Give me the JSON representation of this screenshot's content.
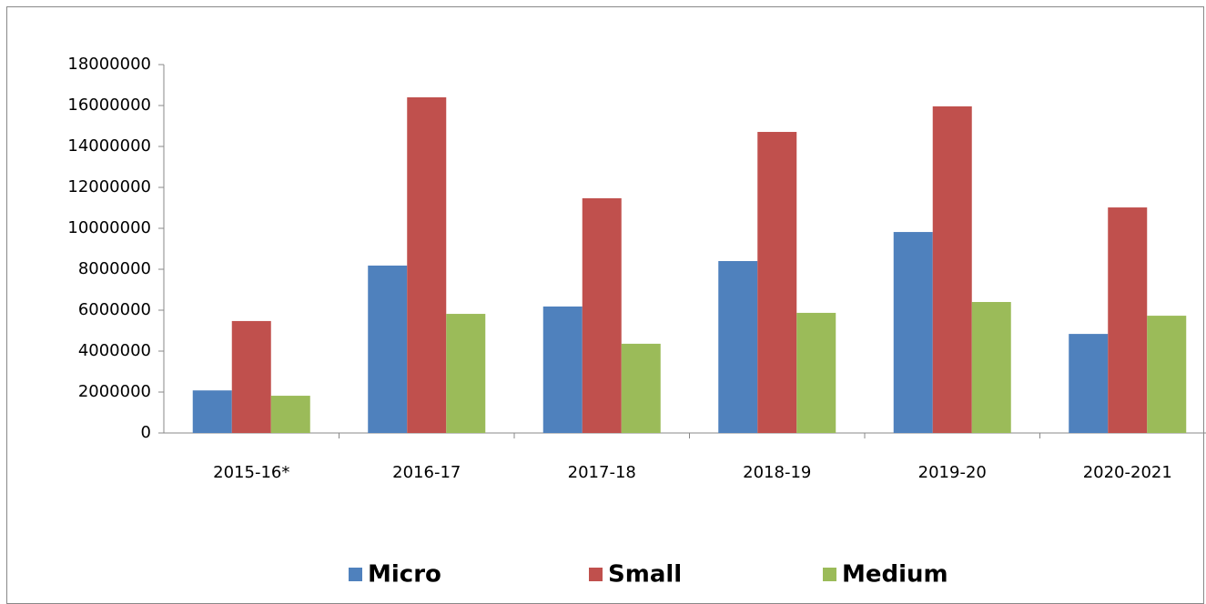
{
  "chart_data": {
    "type": "bar",
    "categories": [
      "2015-16*",
      "2016-17",
      "2017-18",
      "2018-19",
      "2019-20",
      "2020-2021"
    ],
    "series": [
      {
        "name": "Micro",
        "color": "#4f81bd",
        "values": [
          2080000,
          8180000,
          6180000,
          8400000,
          9820000,
          4840000
        ]
      },
      {
        "name": "Small",
        "color": "#c0504d",
        "values": [
          5470000,
          16400000,
          11470000,
          14710000,
          15960000,
          11020000
        ]
      },
      {
        "name": "Medium",
        "color": "#9bbb59",
        "values": [
          1820000,
          5820000,
          4360000,
          5870000,
          6400000,
          5730000
        ]
      }
    ],
    "ylim": [
      0,
      18000000
    ],
    "yticks": [
      0,
      2000000,
      4000000,
      6000000,
      8000000,
      10000000,
      12000000,
      14000000,
      16000000,
      18000000
    ],
    "grid": false,
    "legend": "bottom"
  }
}
